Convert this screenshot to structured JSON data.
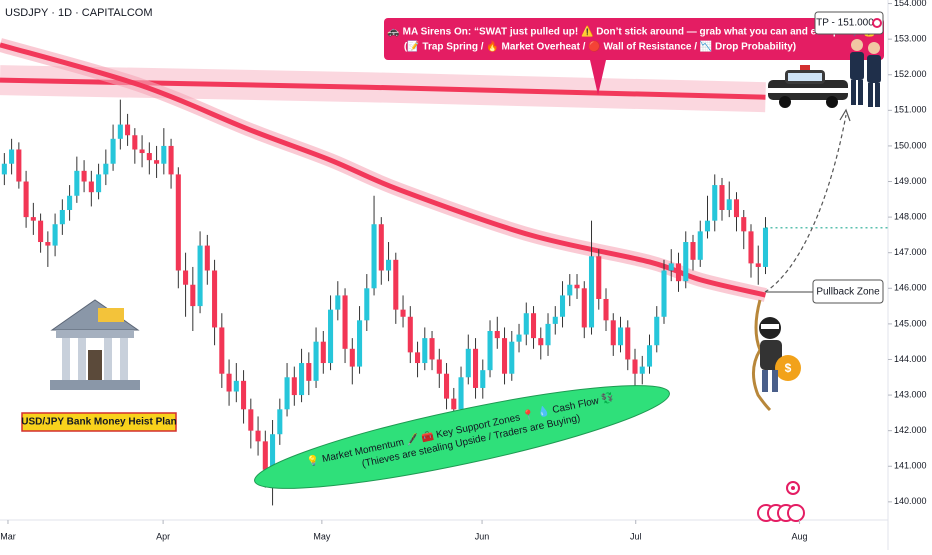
{
  "chart_data": {
    "type": "candlestick",
    "title": "USDJPY · 1D · CAPITALCOM",
    "up_color": "#26c6da",
    "down_color": "#f23655",
    "wick_color": "#333333",
    "ma_color": "#f2385a",
    "band_color": "#f7a6b8",
    "grid": false,
    "xlim": [
      -0.6,
      121.9
    ],
    "xticks": [
      {
        "value": 0.5,
        "label": "Mar"
      },
      {
        "value": 21.9,
        "label": "Apr"
      },
      {
        "value": 43.8,
        "label": "May"
      },
      {
        "value": 65.9,
        "label": "Jun"
      },
      {
        "value": 87.1,
        "label": "Jul"
      },
      {
        "value": 109.7,
        "label": "Aug"
      }
    ],
    "ylim": [
      139.49,
      154.1
    ],
    "yticks": [
      {
        "value": 140,
        "label": "140.000"
      },
      {
        "value": 141,
        "label": "141.000"
      },
      {
        "value": 142,
        "label": "142.000"
      },
      {
        "value": 143,
        "label": "143.000"
      },
      {
        "value": 144,
        "label": "144.000"
      },
      {
        "value": 145,
        "label": "145.000"
      },
      {
        "value": 146,
        "label": "146.000"
      },
      {
        "value": 147,
        "label": "147.000"
      },
      {
        "value": 148,
        "label": "148.000"
      },
      {
        "value": 149,
        "label": "149.000"
      },
      {
        "value": 150,
        "label": "150.000"
      },
      {
        "value": 151,
        "label": "151.000"
      },
      {
        "value": 152,
        "label": "152.000"
      },
      {
        "value": 153,
        "label": "153.000"
      },
      {
        "value": 154,
        "label": "154.000"
      }
    ],
    "candles": [
      [
        149.2,
        149.8,
        148.9,
        149.5
      ],
      [
        149.5,
        150.2,
        149.2,
        149.9
      ],
      [
        149.9,
        150.1,
        148.8,
        149.0
      ],
      [
        149.0,
        149.3,
        147.7,
        148.0
      ],
      [
        148.0,
        148.4,
        147.5,
        147.9
      ],
      [
        147.9,
        148.1,
        147.0,
        147.3
      ],
      [
        147.3,
        147.6,
        146.6,
        147.2
      ],
      [
        147.2,
        148.1,
        146.9,
        147.8
      ],
      [
        147.8,
        148.5,
        147.5,
        148.2
      ],
      [
        148.2,
        148.9,
        147.9,
        148.6
      ],
      [
        148.6,
        149.7,
        148.4,
        149.3
      ],
      [
        149.3,
        149.6,
        148.7,
        149.0
      ],
      [
        149.0,
        149.3,
        148.3,
        148.7
      ],
      [
        148.7,
        149.5,
        148.5,
        149.2
      ],
      [
        149.2,
        149.9,
        148.9,
        149.5
      ],
      [
        149.5,
        150.6,
        149.3,
        150.2
      ],
      [
        150.2,
        151.3,
        149.9,
        150.6
      ],
      [
        150.6,
        150.9,
        150.0,
        150.3
      ],
      [
        150.3,
        150.5,
        149.5,
        149.9
      ],
      [
        149.9,
        150.3,
        149.4,
        149.8
      ],
      [
        149.8,
        150.1,
        149.2,
        149.6
      ],
      [
        149.6,
        150.0,
        149.1,
        149.5
      ],
      [
        149.5,
        150.5,
        149.2,
        150.0
      ],
      [
        150.0,
        150.2,
        148.8,
        149.2
      ],
      [
        149.2,
        149.4,
        146.0,
        146.5
      ],
      [
        146.5,
        147.0,
        145.2,
        146.1
      ],
      [
        146.1,
        146.6,
        144.8,
        145.5
      ],
      [
        145.5,
        147.6,
        145.3,
        147.2
      ],
      [
        147.2,
        147.5,
        146.1,
        146.5
      ],
      [
        146.5,
        146.8,
        144.4,
        144.9
      ],
      [
        144.9,
        145.3,
        143.2,
        143.6
      ],
      [
        143.6,
        144.0,
        142.7,
        143.1
      ],
      [
        143.1,
        143.9,
        142.8,
        143.4
      ],
      [
        143.4,
        143.7,
        142.2,
        142.6
      ],
      [
        142.6,
        142.9,
        141.5,
        142.0
      ],
      [
        142.0,
        142.4,
        141.3,
        141.7
      ],
      [
        141.7,
        142.0,
        140.4,
        140.9
      ],
      [
        140.9,
        142.3,
        139.9,
        141.9
      ],
      [
        141.9,
        142.9,
        141.6,
        142.6
      ],
      [
        142.6,
        143.9,
        142.4,
        143.5
      ],
      [
        143.5,
        143.8,
        142.7,
        143.0
      ],
      [
        143.0,
        144.3,
        142.8,
        143.9
      ],
      [
        143.9,
        144.2,
        143.0,
        143.4
      ],
      [
        143.4,
        144.9,
        143.2,
        144.5
      ],
      [
        144.5,
        144.8,
        143.6,
        143.9
      ],
      [
        143.9,
        145.8,
        143.7,
        145.4
      ],
      [
        145.4,
        146.2,
        145.1,
        145.8
      ],
      [
        145.8,
        146.0,
        143.9,
        144.3
      ],
      [
        144.3,
        144.6,
        143.3,
        143.8
      ],
      [
        143.8,
        145.5,
        143.6,
        145.1
      ],
      [
        145.1,
        146.4,
        144.8,
        146.0
      ],
      [
        146.0,
        148.6,
        145.8,
        147.8
      ],
      [
        147.8,
        148.0,
        146.1,
        146.5
      ],
      [
        146.5,
        147.3,
        146.2,
        146.8
      ],
      [
        146.8,
        147.0,
        145.0,
        145.4
      ],
      [
        145.4,
        145.8,
        144.9,
        145.2
      ],
      [
        145.2,
        145.5,
        143.9,
        144.2
      ],
      [
        144.2,
        144.5,
        143.5,
        143.9
      ],
      [
        143.9,
        144.9,
        143.7,
        144.6
      ],
      [
        144.6,
        144.8,
        143.7,
        144.0
      ],
      [
        144.0,
        144.3,
        143.2,
        143.6
      ],
      [
        143.6,
        143.9,
        142.6,
        142.9
      ],
      [
        142.9,
        143.2,
        142.3,
        142.6
      ],
      [
        142.6,
        143.8,
        142.4,
        143.5
      ],
      [
        143.5,
        144.7,
        143.3,
        144.3
      ],
      [
        144.3,
        144.6,
        142.9,
        143.2
      ],
      [
        143.2,
        144.0,
        142.9,
        143.7
      ],
      [
        143.7,
        145.1,
        143.5,
        144.8
      ],
      [
        144.8,
        145.2,
        144.3,
        144.6
      ],
      [
        144.6,
        144.9,
        143.3,
        143.6
      ],
      [
        143.6,
        144.8,
        143.4,
        144.5
      ],
      [
        144.5,
        145.0,
        144.2,
        144.7
      ],
      [
        144.7,
        145.6,
        144.4,
        145.3
      ],
      [
        145.3,
        145.5,
        144.3,
        144.6
      ],
      [
        144.6,
        144.9,
        144.0,
        144.4
      ],
      [
        144.4,
        145.3,
        144.1,
        145.0
      ],
      [
        145.0,
        145.5,
        144.7,
        145.2
      ],
      [
        145.2,
        146.2,
        144.9,
        145.8
      ],
      [
        145.8,
        146.4,
        145.5,
        146.1
      ],
      [
        146.1,
        146.4,
        145.7,
        146.0
      ],
      [
        146.0,
        146.2,
        144.6,
        144.9
      ],
      [
        144.9,
        147.9,
        144.7,
        146.9
      ],
      [
        146.9,
        147.1,
        145.4,
        145.7
      ],
      [
        145.7,
        146.0,
        144.8,
        145.1
      ],
      [
        145.1,
        145.3,
        144.1,
        144.4
      ],
      [
        144.4,
        145.2,
        144.2,
        144.9
      ],
      [
        144.9,
        145.1,
        143.7,
        144.0
      ],
      [
        144.0,
        144.3,
        143.2,
        143.6
      ],
      [
        143.6,
        144.1,
        143.3,
        143.8
      ],
      [
        143.8,
        144.7,
        143.6,
        144.4
      ],
      [
        144.4,
        145.5,
        144.2,
        145.2
      ],
      [
        145.2,
        146.8,
        145.0,
        146.5
      ],
      [
        146.5,
        147.1,
        146.2,
        146.7
      ],
      [
        146.7,
        147.0,
        145.9,
        146.2
      ],
      [
        146.2,
        147.6,
        146.0,
        147.3
      ],
      [
        147.3,
        147.5,
        146.5,
        146.8
      ],
      [
        146.8,
        147.9,
        146.6,
        147.6
      ],
      [
        147.6,
        148.6,
        147.4,
        147.9
      ],
      [
        147.9,
        149.2,
        147.6,
        148.9
      ],
      [
        148.9,
        149.1,
        147.9,
        148.2
      ],
      [
        148.2,
        149.0,
        148.0,
        148.5
      ],
      [
        148.5,
        148.7,
        147.6,
        148.0
      ],
      [
        148.0,
        148.2,
        147.1,
        147.6
      ],
      [
        147.6,
        147.8,
        146.3,
        146.7
      ],
      [
        146.7,
        147.2,
        146.1,
        146.6
      ],
      [
        146.6,
        148.0,
        146.4,
        147.7
      ]
    ],
    "ma": {
      "x": [
        -0.6,
        18.7,
        33.9,
        45,
        54.6,
        72.5,
        89,
        96,
        105
      ],
      "values": [
        152.84,
        151.71,
        150.45,
        149.6,
        148.76,
        147.5,
        146.74,
        146.24,
        145.81
      ]
    },
    "ma_long": {
      "x": [
        -0.6,
        50,
        105
      ],
      "values": [
        151.85,
        151.65,
        151.37
      ]
    },
    "annotations": {
      "callout": [
        "🚓 MA Sirens On: “SWAT just pulled up! ⚠️ Don’t stick around — grab what you can and escape! 🏃💰”",
        "(📝 Trap Spring / 🔥 Market Overheat / 🔴 Wall of Resistance / 📉 Drop Probability)"
      ],
      "tp_label": "TP - 151.000",
      "pullback_label": "Pullback Zone",
      "bank_label": "USD/JPY Bank Money Heist Plan",
      "support_note": [
        "💡 Market Momentum 🖋️ 🧰 Key Support Zones 📍 💧 Cash Flow 💱",
        "(Thieves are stealing Upside / Traders are Buying)"
      ]
    }
  }
}
